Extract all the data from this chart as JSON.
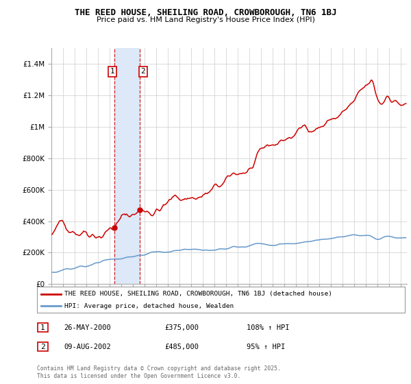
{
  "title": "THE REED HOUSE, SHEILING ROAD, CROWBOROUGH, TN6 1BJ",
  "subtitle": "Price paid vs. HM Land Registry's House Price Index (HPI)",
  "legend_line1": "THE REED HOUSE, SHEILING ROAD, CROWBOROUGH, TN6 1BJ (detached house)",
  "legend_line2": "HPI: Average price, detached house, Wealden",
  "transaction1_date": "26-MAY-2000",
  "transaction1_price": "£375,000",
  "transaction1_hpi": "108% ↑ HPI",
  "transaction2_date": "09-AUG-2002",
  "transaction2_price": "£485,000",
  "transaction2_hpi": "95% ↑ HPI",
  "footer": "Contains HM Land Registry data © Crown copyright and database right 2025.\nThis data is licensed under the Open Government Licence v3.0.",
  "red_color": "#cc0000",
  "blue_color": "#6699cc",
  "shading_color": "#dde8f8",
  "ylim_min": 0,
  "ylim_max": 1500000,
  "yticks": [
    0,
    200000,
    400000,
    600000,
    800000,
    1000000,
    1200000,
    1400000
  ],
  "ytick_labels": [
    "£0",
    "£200K",
    "£400K",
    "£600K",
    "£800K",
    "£1M",
    "£1.2M",
    "£1.4M"
  ],
  "t1_year": 2000.394,
  "t2_year": 2002.607,
  "t1_price": 375000,
  "t2_price": 485000
}
